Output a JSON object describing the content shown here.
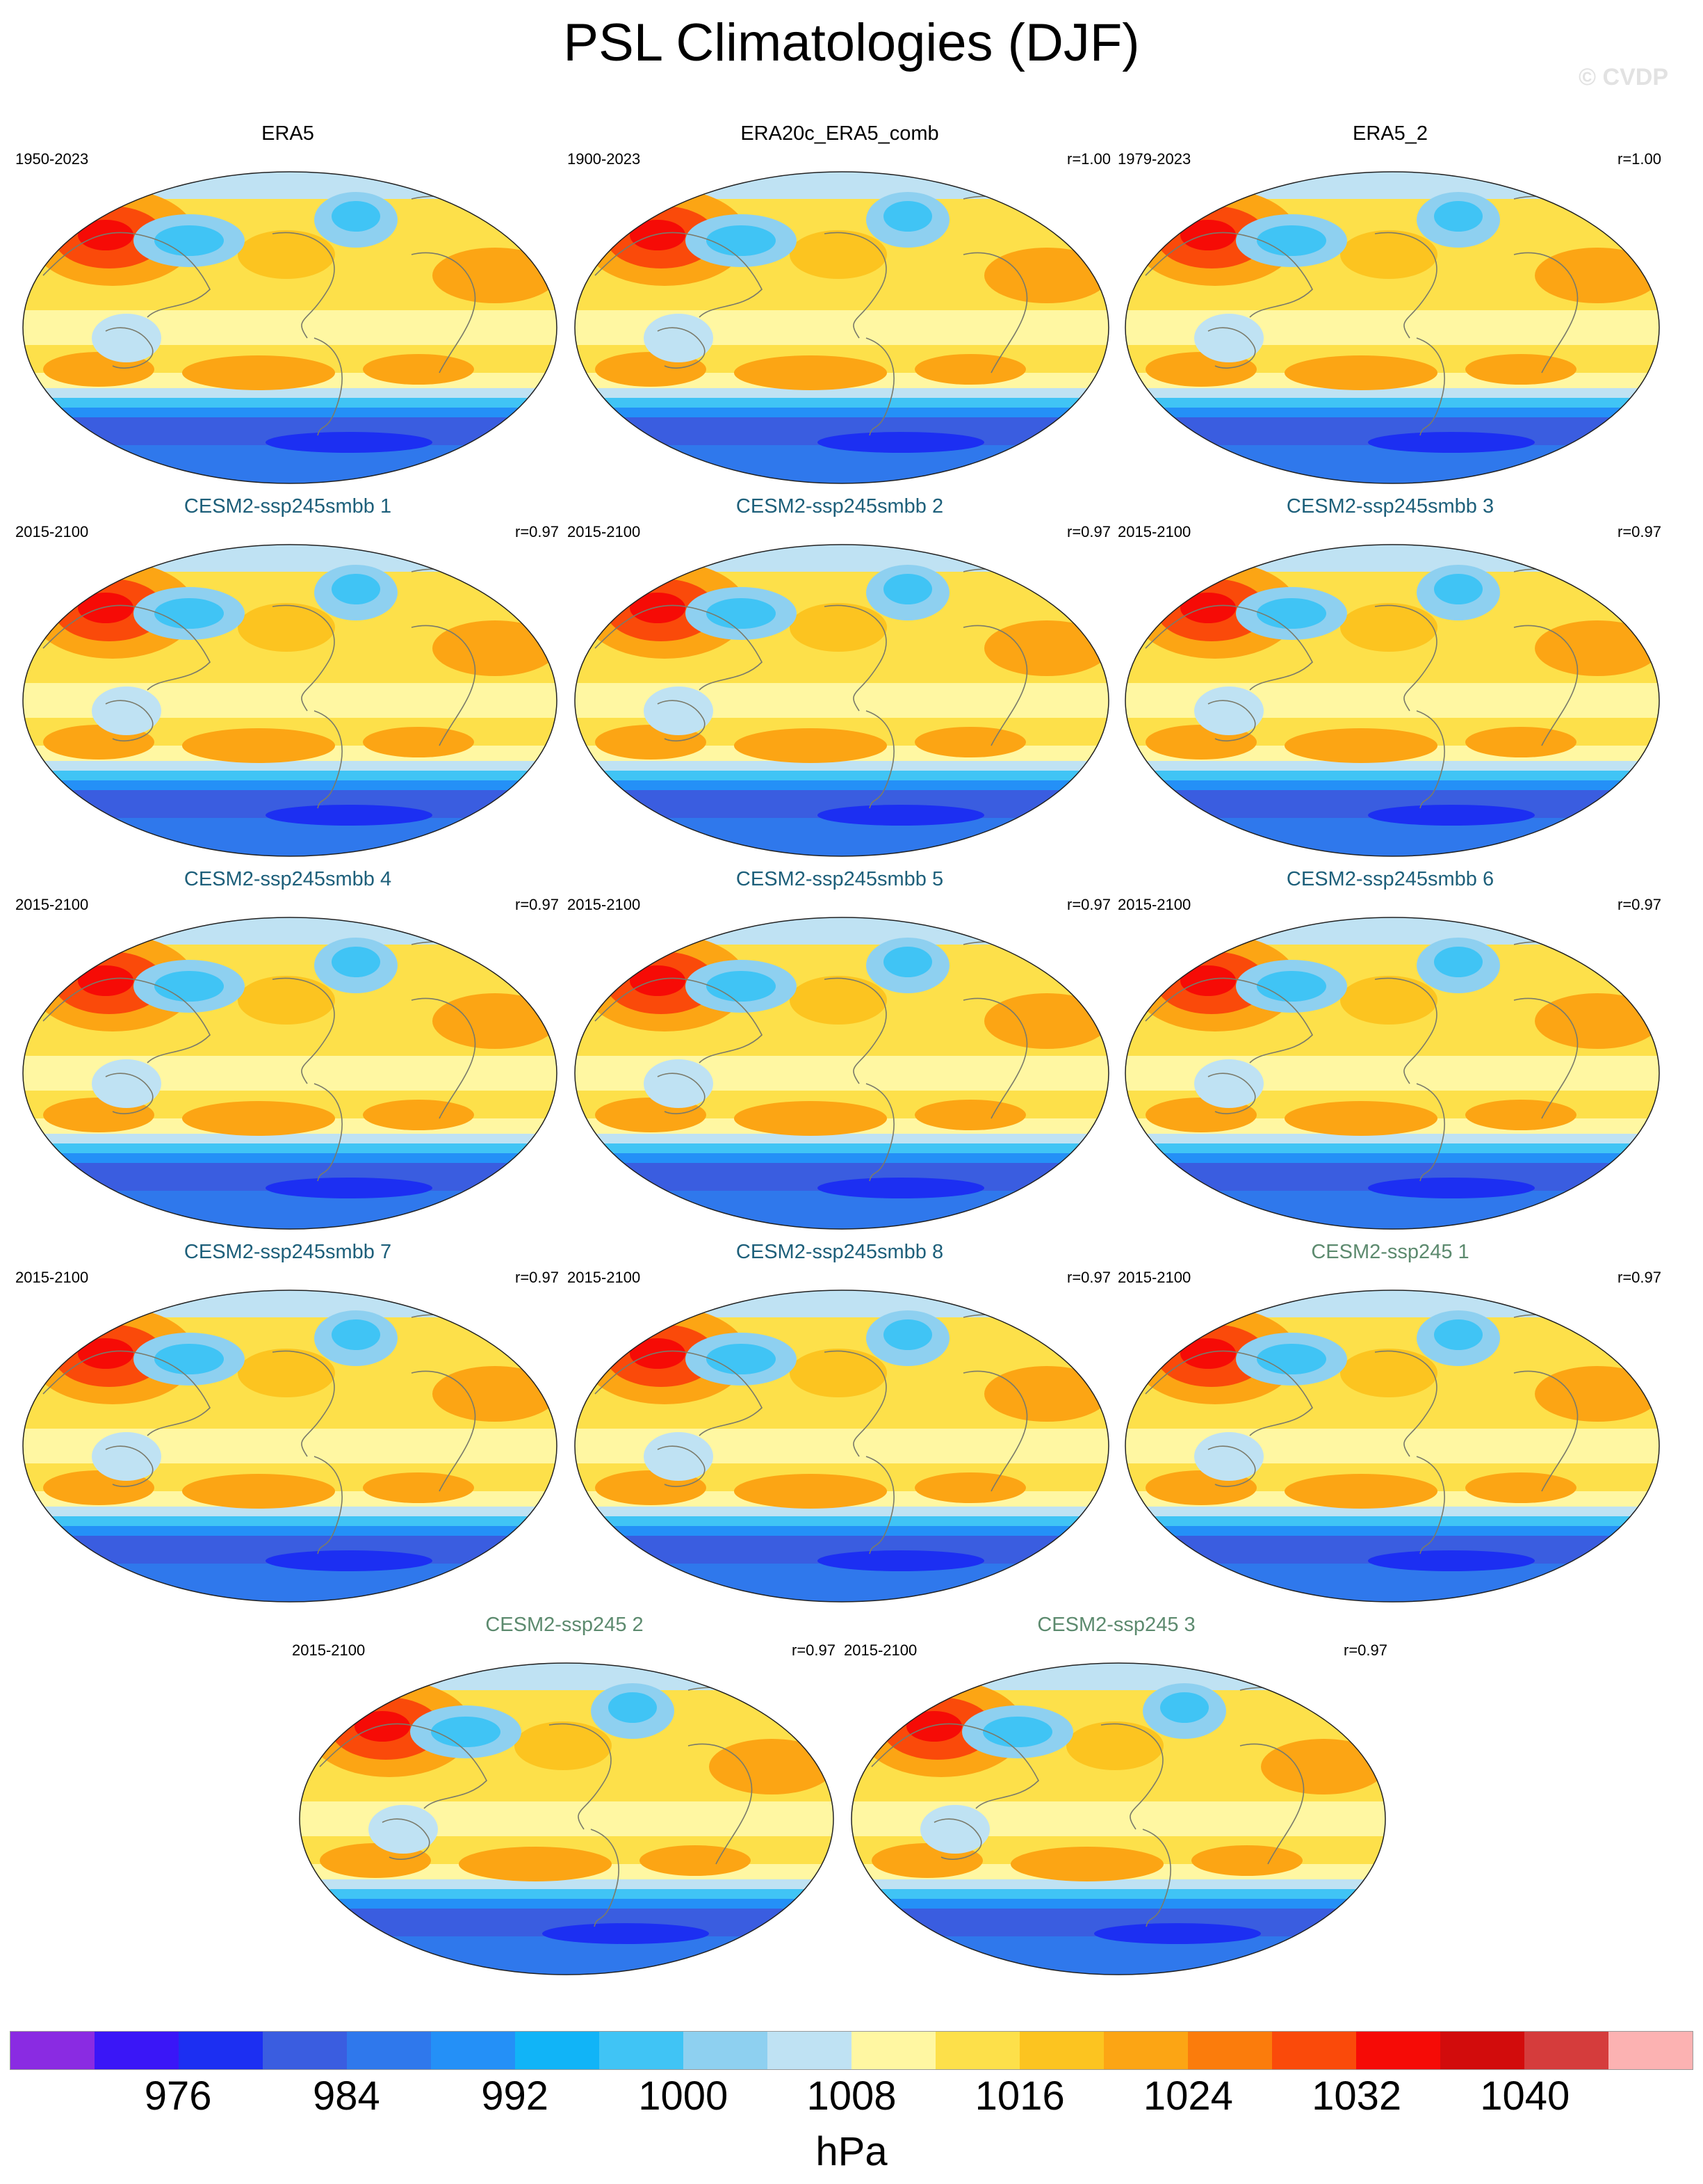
{
  "title": "PSL Climatologies (DJF)",
  "copyright": "© CVDP",
  "panels": [
    {
      "title": "ERA5",
      "years": "1950-2023",
      "r": "",
      "title_color": "#000000"
    },
    {
      "title": "ERA20c_ERA5_comb",
      "years": "1900-2023",
      "r": "r=1.00",
      "title_color": "#000000"
    },
    {
      "title": "ERA5_2",
      "years": "1979-2023",
      "r": "r=1.00",
      "title_color": "#000000"
    },
    {
      "title": "CESM2-ssp245smbb 1",
      "years": "2015-2100",
      "r": "r=0.97",
      "title_color": "#1d5f7a"
    },
    {
      "title": "CESM2-ssp245smbb 2",
      "years": "2015-2100",
      "r": "r=0.97",
      "title_color": "#1d5f7a"
    },
    {
      "title": "CESM2-ssp245smbb 3",
      "years": "2015-2100",
      "r": "r=0.97",
      "title_color": "#1d5f7a"
    },
    {
      "title": "CESM2-ssp245smbb 4",
      "years": "2015-2100",
      "r": "r=0.97",
      "title_color": "#1d5f7a"
    },
    {
      "title": "CESM2-ssp245smbb 5",
      "years": "2015-2100",
      "r": "r=0.97",
      "title_color": "#1d5f7a"
    },
    {
      "title": "CESM2-ssp245smbb 6",
      "years": "2015-2100",
      "r": "r=0.97",
      "title_color": "#1d5f7a"
    },
    {
      "title": "CESM2-ssp245smbb 7",
      "years": "2015-2100",
      "r": "r=0.97",
      "title_color": "#1d5f7a"
    },
    {
      "title": "CESM2-ssp245smbb 8",
      "years": "2015-2100",
      "r": "r=0.97",
      "title_color": "#1d5f7a"
    },
    {
      "title": "CESM2-ssp245 1",
      "years": "2015-2100",
      "r": "r=0.97",
      "title_color": "#5c8a6e"
    },
    {
      "title": "CESM2-ssp245 2",
      "years": "2015-2100",
      "r": "r=0.97",
      "title_color": "#5c8a6e"
    },
    {
      "title": "CESM2-ssp245 3",
      "years": "2015-2100",
      "r": "r=0.97",
      "title_color": "#5c8a6e"
    }
  ],
  "colorbar": {
    "colors": [
      "#8a2be2",
      "#3a16f7",
      "#1c2ff2",
      "#3a5de0",
      "#2f78ec",
      "#2490f7",
      "#11b4f7",
      "#40c4f5",
      "#8ed0f0",
      "#bfe2f3",
      "#fff7a2",
      "#fde04a",
      "#fcc420",
      "#fca514",
      "#fb7c0c",
      "#fa4a0a",
      "#f60b06",
      "#d20c0c",
      "#d53c3c",
      "#fcb2b2"
    ],
    "labels": [
      "976",
      "984",
      "992",
      "1000",
      "1008",
      "1016",
      "1024",
      "1032",
      "1040"
    ],
    "units": "hPa"
  }
}
